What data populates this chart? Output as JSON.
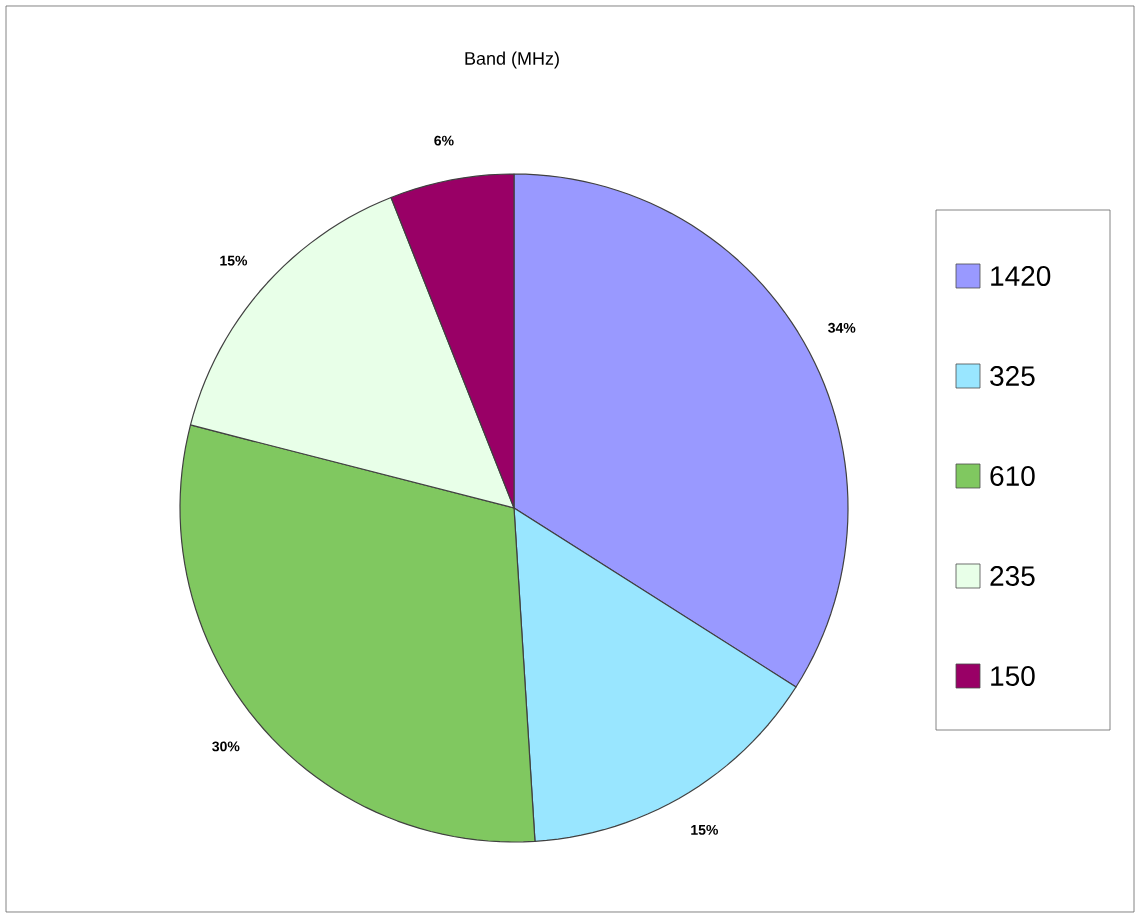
{
  "chart_data": {
    "type": "pie",
    "title": "Band (MHz)",
    "categories": [
      "1420",
      "325",
      "610",
      "235",
      "150"
    ],
    "values": [
      34,
      15,
      30,
      15,
      6
    ],
    "value_labels": [
      "34%",
      "15%",
      "30%",
      "15%",
      "6%"
    ],
    "colors": [
      "#9999ff",
      "#99e6ff",
      "#80c860",
      "#e8ffe8",
      "#990066"
    ],
    "legend": "right"
  }
}
